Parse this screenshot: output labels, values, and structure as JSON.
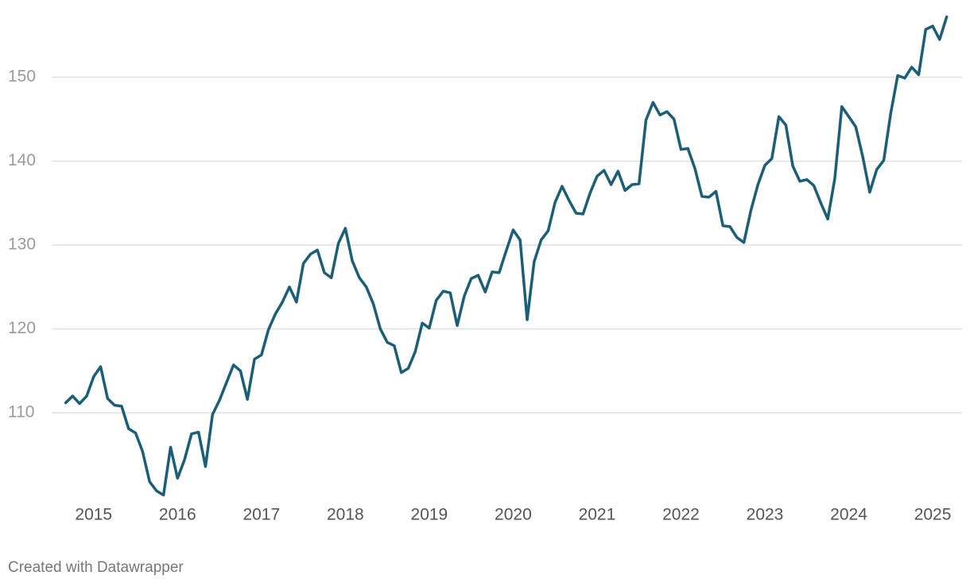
{
  "chart_data": {
    "type": "line",
    "color": "#1b5e78",
    "grid": true,
    "credit": "Created with Datawrapper",
    "x": [
      2014.667,
      2014.75,
      2014.833,
      2014.917,
      2015,
      2015.083,
      2015.167,
      2015.25,
      2015.333,
      2015.417,
      2015.5,
      2015.583,
      2015.667,
      2015.75,
      2015.833,
      2015.917,
      2016,
      2016.083,
      2016.167,
      2016.25,
      2016.333,
      2016.417,
      2016.5,
      2016.583,
      2016.667,
      2016.75,
      2016.833,
      2016.917,
      2017,
      2017.083,
      2017.167,
      2017.25,
      2017.333,
      2017.417,
      2017.5,
      2017.583,
      2017.667,
      2017.75,
      2017.833,
      2017.917,
      2018,
      2018.083,
      2018.167,
      2018.25,
      2018.333,
      2018.417,
      2018.5,
      2018.583,
      2018.667,
      2018.75,
      2018.833,
      2018.917,
      2019,
      2019.083,
      2019.167,
      2019.25,
      2019.333,
      2019.417,
      2019.5,
      2019.583,
      2019.667,
      2019.75,
      2019.833,
      2019.917,
      2020,
      2020.083,
      2020.167,
      2020.25,
      2020.333,
      2020.417,
      2020.5,
      2020.583,
      2020.667,
      2020.75,
      2020.833,
      2020.917,
      2021,
      2021.083,
      2021.167,
      2021.25,
      2021.333,
      2021.417,
      2021.5,
      2021.583,
      2021.667,
      2021.75,
      2021.833,
      2021.917,
      2022,
      2022.083,
      2022.167,
      2022.25,
      2022.333,
      2022.417,
      2022.5,
      2022.583,
      2022.667,
      2022.75,
      2022.833,
      2022.917,
      2023,
      2023.083,
      2023.167,
      2023.25,
      2023.333,
      2023.417,
      2023.5,
      2023.583,
      2023.667,
      2023.75,
      2023.833,
      2023.917,
      2024,
      2024.083,
      2024.167,
      2024.25,
      2024.333,
      2024.417,
      2024.5,
      2024.583,
      2024.667,
      2024.75,
      2024.833,
      2024.917,
      2025,
      2025.083,
      2025.167
    ],
    "values": [
      111.2,
      112.0,
      111.1,
      112.0,
      114.3,
      115.5,
      111.7,
      110.9,
      110.8,
      108.1,
      107.6,
      105.4,
      101.8,
      100.7,
      100.2,
      105.9,
      102.2,
      104.4,
      107.5,
      107.7,
      103.6,
      109.8,
      111.5,
      113.6,
      115.7,
      115.0,
      111.6,
      116.4,
      116.9,
      119.9,
      121.8,
      123.2,
      125.0,
      123.2,
      127.8,
      128.9,
      129.4,
      126.7,
      126.1,
      130.2,
      132.0,
      128.1,
      126.1,
      125.0,
      123.0,
      120.0,
      118.4,
      118.0,
      114.8,
      115.3,
      117.3,
      120.7,
      120.1,
      123.4,
      124.5,
      124.3,
      120.4,
      123.9,
      126.0,
      126.4,
      124.4,
      126.8,
      126.7,
      129.3,
      131.8,
      130.6,
      121.1,
      128.0,
      130.6,
      131.7,
      135.1,
      137.0,
      135.3,
      133.8,
      133.7,
      136.2,
      138.2,
      138.9,
      137.2,
      138.8,
      136.5,
      137.2,
      137.3,
      144.9,
      147.0,
      145.5,
      145.9,
      145.0,
      141.4,
      141.5,
      139.1,
      135.8,
      135.7,
      136.4,
      132.3,
      132.2,
      130.9,
      130.3,
      134.1,
      137.2,
      139.5,
      140.3,
      145.3,
      144.3,
      139.4,
      137.6,
      137.8,
      137.1,
      135.0,
      133.1,
      137.9,
      146.5,
      145.3,
      144.1,
      140.5,
      136.3,
      139.0,
      140.1,
      145.7,
      150.2,
      149.9,
      151.2,
      150.3,
      155.7,
      156.1,
      154.5,
      157.2
    ],
    "xlim": [
      2014.5,
      2025.35
    ],
    "xticks": [
      2015,
      2016,
      2017,
      2018,
      2019,
      2020,
      2021,
      2022,
      2023,
      2024,
      2025
    ],
    "ylim": [
      100,
      157.5
    ],
    "yticks": [
      110,
      120,
      130,
      140,
      150
    ]
  }
}
